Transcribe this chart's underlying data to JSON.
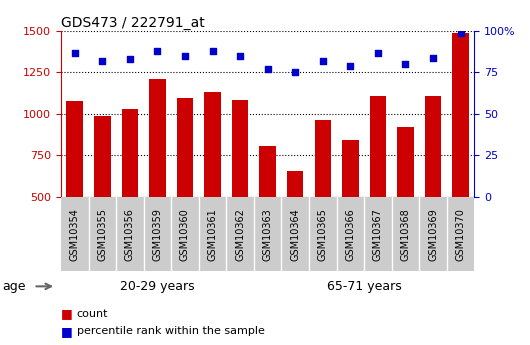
{
  "title": "GDS473 / 222791_at",
  "categories": [
    "GSM10354",
    "GSM10355",
    "GSM10356",
    "GSM10359",
    "GSM10360",
    "GSM10361",
    "GSM10362",
    "GSM10363",
    "GSM10364",
    "GSM10365",
    "GSM10366",
    "GSM10367",
    "GSM10368",
    "GSM10369",
    "GSM10370"
  ],
  "bar_values": [
    1080,
    985,
    1030,
    1210,
    1095,
    1130,
    1085,
    805,
    655,
    960,
    840,
    1105,
    920,
    1105,
    1490
  ],
  "dot_values": [
    87,
    82,
    83,
    88,
    85,
    88,
    85,
    77,
    75,
    82,
    79,
    87,
    80,
    84,
    99
  ],
  "bar_color": "#cc0000",
  "dot_color": "#0000cc",
  "ylim_left": [
    500,
    1500
  ],
  "ylim_right": [
    0,
    100
  ],
  "yticks_left": [
    500,
    750,
    1000,
    1250,
    1500
  ],
  "yticks_right": [
    0,
    25,
    50,
    75,
    100
  ],
  "group1_label": "20-29 years",
  "group2_label": "65-71 years",
  "group1_count": 7,
  "group2_count": 8,
  "group1_color": "#bbffbb",
  "group2_color": "#44dd44",
  "age_label": "age",
  "legend_count": "count",
  "legend_pct": "percentile rank within the sample",
  "bg_color": "#ffffff",
  "tick_bg_color": "#cccccc",
  "title_color": "#000000"
}
